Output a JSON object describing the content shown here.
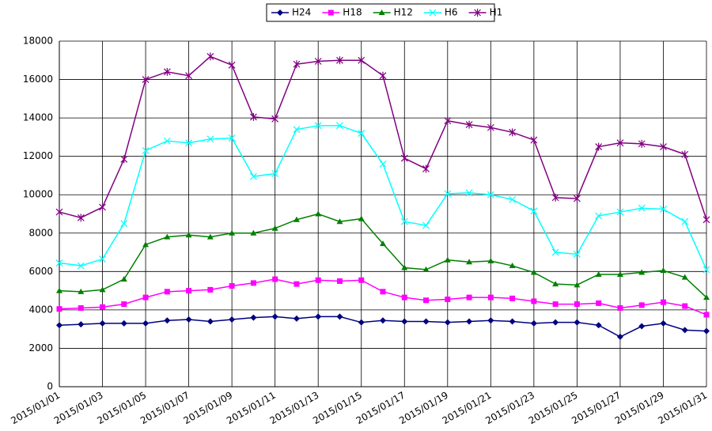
{
  "chart_data": {
    "type": "line",
    "categories": [
      "2015/01/01",
      null,
      "2015/01/03",
      null,
      "2015/01/05",
      null,
      "2015/01/07",
      null,
      "2015/01/09",
      null,
      "2015/01/11",
      null,
      "2015/01/13",
      null,
      "2015/01/15",
      null,
      "2015/01/17",
      null,
      "2015/01/19",
      null,
      "2015/01/21",
      null,
      "2015/01/23",
      null,
      "2015/01/25",
      null,
      "2015/01/27",
      null,
      "2015/01/29",
      null,
      "2015/01/31"
    ],
    "series": [
      {
        "name": "H24",
        "color": "#000080",
        "marker": "diamond",
        "values": [
          3200,
          3250,
          3300,
          3300,
          3300,
          3450,
          3500,
          3400,
          3500,
          3600,
          3650,
          3550,
          3650,
          3650,
          3350,
          3450,
          3400,
          3400,
          3350,
          3400,
          3450,
          3400,
          3300,
          3350,
          3350,
          3200,
          2600,
          3150,
          3300,
          2950,
          2900
        ]
      },
      {
        "name": "H18",
        "color": "#ff00ff",
        "marker": "square",
        "values": [
          4050,
          4100,
          4150,
          4300,
          4650,
          4950,
          5000,
          5050,
          5250,
          5400,
          5600,
          5350,
          5550,
          5500,
          5550,
          4950,
          4650,
          4500,
          4550,
          4650,
          4650,
          4600,
          4450,
          4300,
          4300,
          4350,
          4100,
          4250,
          4400,
          4200,
          3750
        ]
      },
      {
        "name": "H12",
        "color": "#008000",
        "marker": "triangle",
        "values": [
          5000,
          4950,
          5050,
          5600,
          7400,
          7800,
          7900,
          7800,
          8000,
          8000,
          8250,
          8700,
          9000,
          8600,
          8750,
          7450,
          6200,
          6100,
          6600,
          6500,
          6550,
          6300,
          5950,
          5350,
          5300,
          5850,
          5850,
          5950,
          6050,
          5700,
          4650
        ]
      },
      {
        "name": "H6",
        "color": "#00ffff",
        "marker": "x",
        "values": [
          6450,
          6300,
          6650,
          8500,
          12300,
          12800,
          12700,
          12900,
          12950,
          10950,
          11100,
          13400,
          13600,
          13600,
          13200,
          11600,
          8600,
          8400,
          10050,
          10100,
          10000,
          9750,
          9150,
          7000,
          6900,
          8900,
          9100,
          9300,
          9250,
          8600,
          6100
        ]
      },
      {
        "name": "H1",
        "color": "#800080",
        "marker": "star",
        "values": [
          9100,
          8800,
          9350,
          11850,
          16000,
          16400,
          16200,
          17200,
          16750,
          14050,
          13950,
          16800,
          16950,
          17000,
          17000,
          16200,
          11900,
          11350,
          13850,
          13650,
          13500,
          13250,
          12850,
          9850,
          9800,
          12500,
          12700,
          12650,
          12500,
          12100,
          8700
        ]
      }
    ],
    "ylim": [
      0,
      18000
    ],
    "yticks": [
      0,
      2000,
      4000,
      6000,
      8000,
      10000,
      12000,
      14000,
      16000,
      18000
    ],
    "grid": true,
    "legend": "top"
  }
}
